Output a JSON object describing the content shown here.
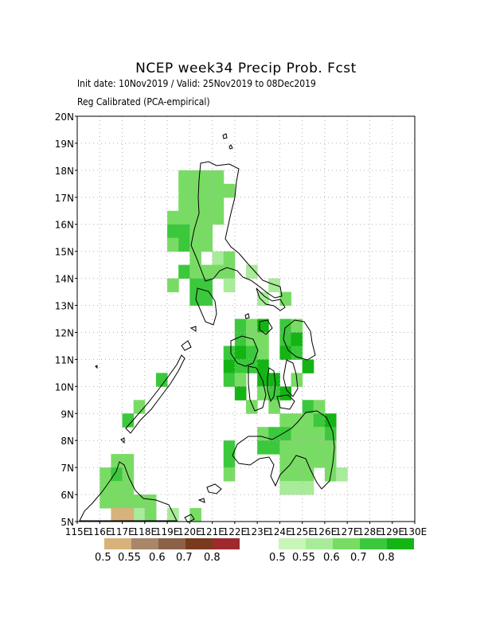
{
  "title": "NCEP week34 Precip Prob. Fcst",
  "subtitle_line1": "Init date: 10Nov2019 / Valid: 25Nov2019 to 08Dec2019",
  "subtitle_line2": "Reg Calibrated (PCA-empirical)",
  "lat_labels": [
    "5N",
    "6N",
    "7N",
    "8N",
    "9N",
    "10N",
    "11N",
    "12N",
    "13N",
    "14N",
    "15N",
    "16N",
    "17N",
    "18N",
    "19N",
    "20N"
  ],
  "lon_labels": [
    "115E",
    "116E",
    "117E",
    "118E",
    "119E",
    "120E",
    "121E",
    "122E",
    "123E",
    "124E",
    "125E",
    "126E",
    "127E",
    "128E",
    "129E",
    "130E"
  ],
  "colorbar_dry": {
    "labels": [
      "0.5",
      "0.55",
      "0.6",
      "0.7",
      "0.8"
    ],
    "colors": [
      "#d8b27a",
      "#a8866a",
      "#8b6248",
      "#7a3a1e",
      "#9e2a2e"
    ]
  },
  "colorbar_wet": {
    "labels": [
      "0.5",
      "0.55",
      "0.6",
      "0.7",
      "0.8"
    ],
    "colors": [
      "#c8f5b8",
      "#a8eb98",
      "#78dc64",
      "#3cc83c",
      "#14b414"
    ]
  },
  "map_colors": {
    "frame": "#000000",
    "grid": "#b0b0b0",
    "coast": "#000000"
  }
}
